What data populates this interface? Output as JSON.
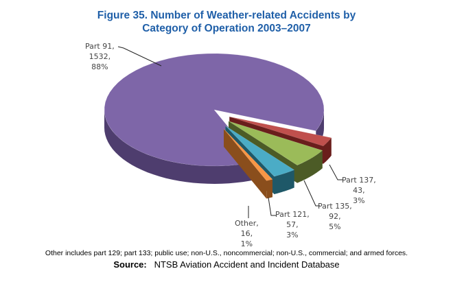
{
  "chart_data": {
    "type": "pie",
    "title": "Figure 35.  Number of Weather-related Accidents by Category of Operation 2003–2007",
    "title_line1": "Figure 35.  Number of Weather-related Accidents by",
    "title_line2": "Category of Operation 2003–2007",
    "style": "3d-exploded",
    "slices": [
      {
        "name": "Part 91",
        "value": 1532,
        "percent": "88%",
        "color": "#7E66A8",
        "side": "#4E3D6E"
      },
      {
        "name": "Part 137",
        "value": 43,
        "percent": "3%",
        "color": "#C0504D",
        "side": "#6A1E1C"
      },
      {
        "name": "Part 135",
        "value": 92,
        "percent": "5%",
        "color": "#9BBB59",
        "side": "#4C5B26"
      },
      {
        "name": "Part 121",
        "value": 57,
        "percent": "3%",
        "color": "#4BACC6",
        "side": "#1E5868"
      },
      {
        "name": "Other",
        "value": 16,
        "percent": "1%",
        "color": "#F79646",
        "side": "#8A4E1C"
      }
    ],
    "labels": [
      {
        "l1": "Part 91,",
        "l2": "1532,",
        "l3": "88%"
      },
      {
        "l1": "Part 137,",
        "l2": "43,",
        "l3": "3%"
      },
      {
        "l1": "Part 135,",
        "l2": "92,",
        "l3": "5%"
      },
      {
        "l1": "Part 121,",
        "l2": "57,",
        "l3": "3%"
      },
      {
        "l1": "Other,",
        "l2": "16,",
        "l3": "1%"
      }
    ]
  },
  "note": "Other includes part 129; part 133; public use; non-U.S., noncommercial; non-U.S., commercial; and armed forces.",
  "source_label": "Source:",
  "source_text": "NTSB Aviation Accident and Incident Database"
}
